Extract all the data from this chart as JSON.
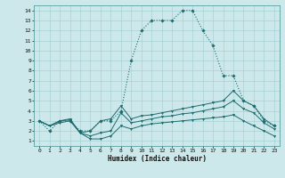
{
  "xlabel": "Humidex (Indice chaleur)",
  "background_color": "#cce8ea",
  "grid_color": "#9fcdd0",
  "line_color": "#1e6b6e",
  "xlim": [
    -0.5,
    23.5
  ],
  "ylim": [
    0.5,
    14.5
  ],
  "xticks": [
    0,
    1,
    2,
    3,
    4,
    5,
    6,
    7,
    8,
    9,
    10,
    11,
    12,
    13,
    14,
    15,
    16,
    17,
    18,
    19,
    20,
    21,
    22,
    23
  ],
  "yticks": [
    1,
    2,
    3,
    4,
    5,
    6,
    7,
    8,
    9,
    10,
    11,
    12,
    13,
    14
  ],
  "series1_x": [
    0,
    1,
    2,
    3,
    4,
    5,
    6,
    7,
    8,
    9,
    10,
    11,
    12,
    13,
    14,
    15,
    16,
    17,
    18,
    19,
    20,
    21,
    22,
    23
  ],
  "series1_y": [
    3,
    2,
    3,
    3,
    2,
    2,
    3,
    3,
    4,
    9,
    12,
    13,
    13,
    13,
    14,
    14,
    12,
    10.5,
    7.5,
    7.5,
    5,
    4.5,
    3,
    2.5
  ],
  "series2_x": [
    0,
    1,
    2,
    3,
    4,
    5,
    6,
    7,
    8,
    9,
    10,
    11,
    12,
    13,
    14,
    15,
    16,
    17,
    18,
    19,
    20,
    21,
    22,
    23
  ],
  "series2_y": [
    3,
    2.5,
    3,
    3.2,
    1.8,
    2.0,
    3.0,
    3.2,
    4.5,
    3.2,
    3.5,
    3.6,
    3.8,
    4.0,
    4.2,
    4.4,
    4.6,
    4.8,
    5.0,
    6.0,
    5.0,
    4.5,
    3.2,
    2.5
  ],
  "series3_x": [
    0,
    1,
    2,
    3,
    4,
    5,
    6,
    7,
    8,
    9,
    10,
    11,
    12,
    13,
    14,
    15,
    16,
    17,
    18,
    19,
    20,
    21,
    22,
    23
  ],
  "series3_y": [
    3,
    2.5,
    3,
    3.1,
    1.8,
    1.5,
    1.8,
    2.0,
    3.8,
    2.8,
    3.0,
    3.2,
    3.4,
    3.5,
    3.7,
    3.8,
    4.0,
    4.2,
    4.4,
    5.0,
    4.2,
    3.8,
    2.8,
    2.2
  ],
  "series4_x": [
    0,
    1,
    2,
    3,
    4,
    5,
    6,
    7,
    8,
    9,
    10,
    11,
    12,
    13,
    14,
    15,
    16,
    17,
    18,
    19,
    20,
    21,
    22,
    23
  ],
  "series4_y": [
    3,
    2.5,
    2.8,
    3.0,
    1.8,
    1.2,
    1.2,
    1.5,
    2.5,
    2.2,
    2.5,
    2.7,
    2.8,
    2.9,
    3.0,
    3.1,
    3.2,
    3.3,
    3.4,
    3.6,
    3.0,
    2.5,
    2.0,
    1.5
  ]
}
